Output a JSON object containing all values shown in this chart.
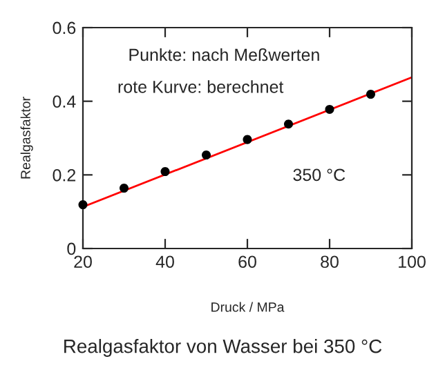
{
  "chart_data": {
    "type": "scatter",
    "title": "Realgasfaktor von Wasser bei 350 °C",
    "xlabel": "Druck / MPa",
    "ylabel": "Realgasfaktor",
    "annotations": [
      "Punkte: nach Meßwerten",
      "rote Kurve: berechnet",
      "350 °C"
    ],
    "series": [
      {
        "color": "#000000",
        "marker": "circle",
        "x": [
          20,
          30,
          40,
          50,
          60,
          70,
          80,
          90
        ],
        "values": [
          0.119,
          0.164,
          0.209,
          0.254,
          0.296,
          0.338,
          0.378,
          0.419
        ]
      },
      {
        "type": "line",
        "color": "#ff0000",
        "marker": "none",
        "x": [
          20,
          100
        ],
        "values": [
          0.113,
          0.465
        ]
      }
    ],
    "xlim": [
      20,
      100
    ],
    "xticks": [
      20,
      40,
      60,
      80,
      100
    ],
    "ylim": [
      0,
      0.6
    ],
    "yticks": [
      0,
      0.2,
      0.4,
      0.6
    ],
    "grid": false,
    "legend": false
  }
}
